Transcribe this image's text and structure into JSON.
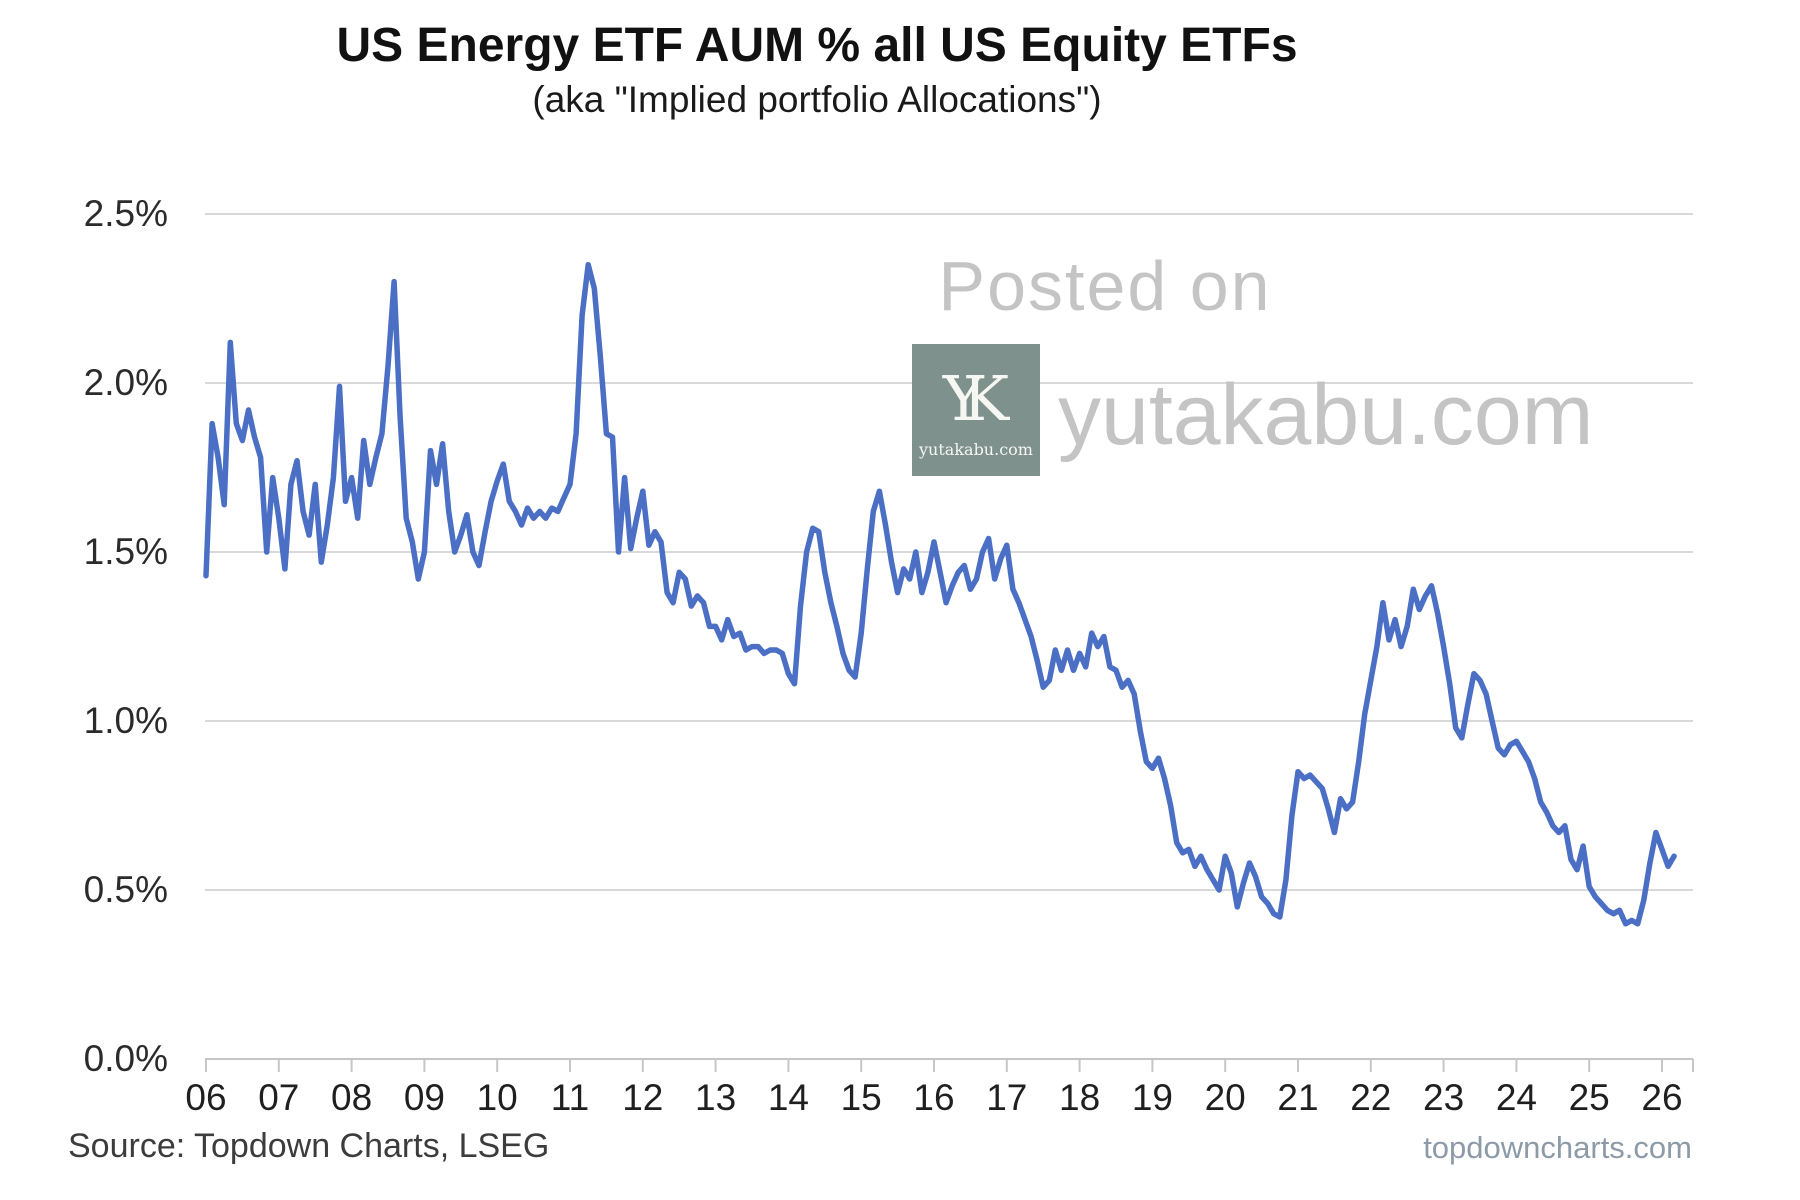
{
  "title": "US Energy ETF AUM % all US Equity ETFs",
  "subtitle": "(aka \"Implied portfolio Allocations\")",
  "watermark": {
    "line1": "Posted on",
    "line2": "yutakabu.com",
    "logo_monogram": "YK",
    "logo_caption": "yutakabu.com",
    "logo_bg_color": "#7e918d",
    "text_color": "#c4c4c4"
  },
  "source_note": "Source: Topdown Charts, LSEG",
  "footer_site": "topdowncharts.com",
  "chart_data": {
    "type": "line",
    "title": "US Energy ETF AUM % all US Equity ETFs",
    "subtitle": "(aka \"Implied portfolio Allocations\")",
    "frequency": "monthly",
    "x_start_year": 2006,
    "x_tick_labels": [
      "06",
      "07",
      "08",
      "09",
      "10",
      "11",
      "12",
      "13",
      "14",
      "15",
      "16",
      "17",
      "18",
      "19",
      "20",
      "21",
      "22",
      "23",
      "24",
      "25",
      "26"
    ],
    "y_tick_labels": [
      "0.0%",
      "0.5%",
      "1.0%",
      "1.5%",
      "2.0%",
      "2.5%"
    ],
    "y_tick_values": [
      0.0,
      0.5,
      1.0,
      1.5,
      2.0,
      2.5
    ],
    "ylim": [
      0.0,
      2.5
    ],
    "grid": "horizontal",
    "legend": "none",
    "line_color": "#4a6fc4",
    "grid_color": "#d9d9d9",
    "axis_color": "#c6c6c6",
    "series": [
      {
        "name": "US Energy ETF AUM as % of all US Equity ETFs",
        "values": [
          1.43,
          1.88,
          1.78,
          1.64,
          2.12,
          1.88,
          1.83,
          1.92,
          1.84,
          1.78,
          1.5,
          1.72,
          1.6,
          1.45,
          1.7,
          1.77,
          1.62,
          1.55,
          1.7,
          1.47,
          1.58,
          1.72,
          1.99,
          1.65,
          1.72,
          1.6,
          1.83,
          1.7,
          1.78,
          1.85,
          2.05,
          2.3,
          1.9,
          1.6,
          1.53,
          1.42,
          1.5,
          1.8,
          1.7,
          1.82,
          1.62,
          1.5,
          1.55,
          1.61,
          1.5,
          1.46,
          1.56,
          1.65,
          1.71,
          1.76,
          1.65,
          1.62,
          1.58,
          1.63,
          1.6,
          1.62,
          1.6,
          1.63,
          1.62,
          1.66,
          1.7,
          1.85,
          2.2,
          2.35,
          2.28,
          2.08,
          1.85,
          1.84,
          1.5,
          1.72,
          1.51,
          1.6,
          1.68,
          1.52,
          1.56,
          1.53,
          1.38,
          1.35,
          1.44,
          1.42,
          1.34,
          1.37,
          1.35,
          1.28,
          1.28,
          1.24,
          1.3,
          1.25,
          1.26,
          1.21,
          1.22,
          1.22,
          1.2,
          1.21,
          1.21,
          1.2,
          1.14,
          1.11,
          1.34,
          1.5,
          1.57,
          1.56,
          1.44,
          1.35,
          1.28,
          1.2,
          1.15,
          1.13,
          1.26,
          1.45,
          1.62,
          1.68,
          1.58,
          1.47,
          1.38,
          1.45,
          1.42,
          1.5,
          1.38,
          1.44,
          1.53,
          1.44,
          1.35,
          1.4,
          1.44,
          1.46,
          1.39,
          1.42,
          1.5,
          1.54,
          1.42,
          1.48,
          1.52,
          1.39,
          1.35,
          1.3,
          1.25,
          1.18,
          1.1,
          1.12,
          1.21,
          1.15,
          1.21,
          1.15,
          1.2,
          1.16,
          1.26,
          1.22,
          1.25,
          1.16,
          1.15,
          1.1,
          1.12,
          1.08,
          0.97,
          0.88,
          0.86,
          0.89,
          0.83,
          0.75,
          0.64,
          0.61,
          0.62,
          0.57,
          0.6,
          0.56,
          0.53,
          0.5,
          0.6,
          0.55,
          0.45,
          0.52,
          0.58,
          0.54,
          0.48,
          0.46,
          0.43,
          0.42,
          0.53,
          0.72,
          0.85,
          0.83,
          0.84,
          0.82,
          0.8,
          0.74,
          0.67,
          0.77,
          0.74,
          0.76,
          0.88,
          1.02,
          1.12,
          1.22,
          1.35,
          1.24,
          1.3,
          1.22,
          1.28,
          1.39,
          1.33,
          1.37,
          1.4,
          1.32,
          1.22,
          1.11,
          0.98,
          0.95,
          1.05,
          1.14,
          1.12,
          1.08,
          1.0,
          0.92,
          0.9,
          0.93,
          0.94,
          0.91,
          0.88,
          0.83,
          0.76,
          0.73,
          0.69,
          0.67,
          0.69,
          0.59,
          0.56,
          0.63,
          0.51,
          0.48,
          0.46,
          0.44,
          0.43,
          0.44,
          0.4,
          0.41,
          0.4,
          0.47,
          0.58,
          0.67,
          0.62,
          0.57,
          0.6
        ]
      }
    ]
  }
}
